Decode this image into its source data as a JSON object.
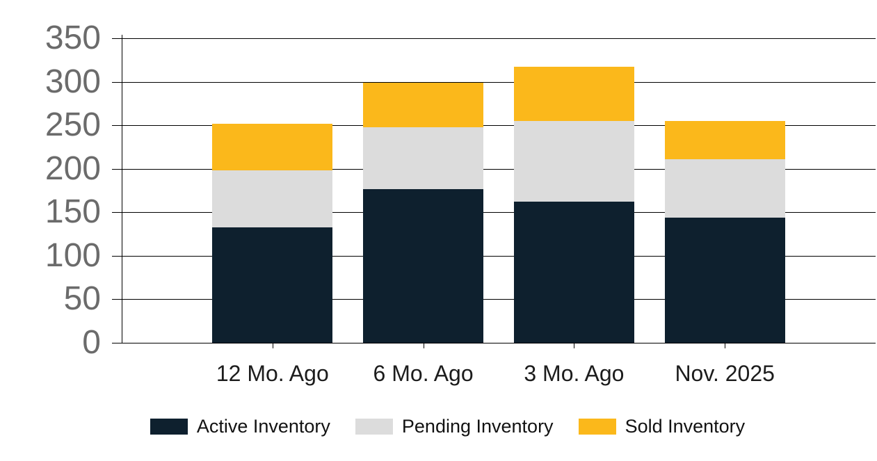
{
  "chart": {
    "background_color": "#ffffff",
    "grid_color": "#000000",
    "axis_color": "#000000",
    "y_label_color": "#6b6b6b",
    "x_label_color": "#1c1c1c",
    "legend_text_color": "#121212"
  },
  "chart_data": {
    "type": "bar",
    "stacked": true,
    "title": "",
    "xlabel": "",
    "ylabel": "",
    "categories": [
      "12 Mo. Ago",
      "6 Mo. Ago",
      "3 Mo. Ago",
      "Nov. 2025"
    ],
    "series": [
      {
        "name": "Active Inventory",
        "color": "#0e202e",
        "values": [
          133,
          177,
          162,
          144
        ]
      },
      {
        "name": "Pending Inventory",
        "color": "#dcdcdc",
        "values": [
          65,
          71,
          93,
          67
        ]
      },
      {
        "name": "Sold Inventory",
        "color": "#fbb81b",
        "values": [
          54,
          51,
          62,
          44
        ]
      }
    ],
    "ylim": [
      0,
      350
    ],
    "yticks": [
      0,
      50,
      100,
      150,
      200,
      250,
      300,
      350
    ],
    "grid": true,
    "legend_position": "bottom"
  }
}
